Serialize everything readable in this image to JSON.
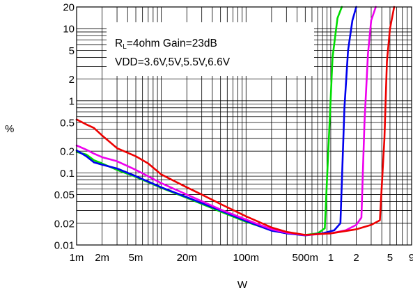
{
  "chart_data": {
    "type": "line",
    "xscale": "log",
    "yscale": "log",
    "xlim": [
      0.001,
      9
    ],
    "ylim": [
      0.01,
      20
    ],
    "grid": true,
    "xlabel": "W",
    "ylabel": "%",
    "xticks": [
      {
        "value": 0.001,
        "label": "1m"
      },
      {
        "value": 0.002,
        "label": "2m"
      },
      {
        "value": 0.005,
        "label": "5m"
      },
      {
        "value": 0.02,
        "label": "20m"
      },
      {
        "value": 0.1,
        "label": "100m"
      },
      {
        "value": 0.5,
        "label": "500m"
      },
      {
        "value": 1,
        "label": "1"
      },
      {
        "value": 2,
        "label": "2"
      },
      {
        "value": 5,
        "label": "5"
      },
      {
        "value": 9,
        "label": "9"
      }
    ],
    "yticks": [
      {
        "value": 0.01,
        "label": "0.01"
      },
      {
        "value": 0.02,
        "label": "0.02"
      },
      {
        "value": 0.05,
        "label": "0.05"
      },
      {
        "value": 0.1,
        "label": "0.1"
      },
      {
        "value": 0.2,
        "label": "0.2"
      },
      {
        "value": 0.5,
        "label": "0.5"
      },
      {
        "value": 1,
        "label": "1"
      },
      {
        "value": 2,
        "label": "2"
      },
      {
        "value": 5,
        "label": "5"
      },
      {
        "value": 10,
        "label": "10"
      },
      {
        "value": 20,
        "label": "20"
      }
    ],
    "annotation": {
      "line1_prefix": "R",
      "line1_sub": "L",
      "line1_rest": "=4ohm Gain=23dB",
      "line2": "VDD=3.6V,5V,5.5V,6.6V"
    },
    "series": [
      {
        "color": "#00dd00",
        "points": [
          [
            0.001,
            0.195
          ],
          [
            0.0013,
            0.18
          ],
          [
            0.0016,
            0.15
          ],
          [
            0.002,
            0.135
          ],
          [
            0.003,
            0.11
          ],
          [
            0.005,
            0.088
          ],
          [
            0.01,
            0.062
          ],
          [
            0.02,
            0.045
          ],
          [
            0.05,
            0.029
          ],
          [
            0.1,
            0.021
          ],
          [
            0.2,
            0.016
          ],
          [
            0.3,
            0.0145
          ],
          [
            0.5,
            0.0138
          ],
          [
            0.7,
            0.0145
          ],
          [
            0.85,
            0.017
          ],
          [
            0.95,
            0.3
          ],
          [
            1.05,
            4.0
          ],
          [
            1.2,
            14
          ],
          [
            1.35,
            20
          ]
        ]
      },
      {
        "color": "#0000ee",
        "points": [
          [
            0.001,
            0.205
          ],
          [
            0.0013,
            0.17
          ],
          [
            0.0016,
            0.14
          ],
          [
            0.002,
            0.13
          ],
          [
            0.003,
            0.115
          ],
          [
            0.005,
            0.09
          ],
          [
            0.01,
            0.063
          ],
          [
            0.02,
            0.046
          ],
          [
            0.05,
            0.03
          ],
          [
            0.1,
            0.0215
          ],
          [
            0.2,
            0.0158
          ],
          [
            0.3,
            0.0145
          ],
          [
            0.5,
            0.0136
          ],
          [
            0.8,
            0.0145
          ],
          [
            1.1,
            0.016
          ],
          [
            1.3,
            0.02
          ],
          [
            1.45,
            0.8
          ],
          [
            1.6,
            5.0
          ],
          [
            1.8,
            13
          ],
          [
            2.0,
            20
          ]
        ]
      },
      {
        "color": "#ee00ee",
        "points": [
          [
            0.001,
            0.24
          ],
          [
            0.0013,
            0.21
          ],
          [
            0.0016,
            0.185
          ],
          [
            0.002,
            0.165
          ],
          [
            0.003,
            0.145
          ],
          [
            0.005,
            0.11
          ],
          [
            0.01,
            0.072
          ],
          [
            0.02,
            0.05
          ],
          [
            0.05,
            0.031
          ],
          [
            0.1,
            0.0225
          ],
          [
            0.2,
            0.0165
          ],
          [
            0.3,
            0.0148
          ],
          [
            0.5,
            0.0137
          ],
          [
            1.0,
            0.0145
          ],
          [
            1.5,
            0.016
          ],
          [
            2.0,
            0.019
          ],
          [
            2.3,
            0.024
          ],
          [
            2.5,
            0.5
          ],
          [
            2.75,
            4.5
          ],
          [
            3.0,
            13
          ],
          [
            3.4,
            20
          ]
        ]
      },
      {
        "color": "#ee0000",
        "points": [
          [
            0.001,
            0.55
          ],
          [
            0.0013,
            0.47
          ],
          [
            0.0016,
            0.42
          ],
          [
            0.002,
            0.33
          ],
          [
            0.003,
            0.22
          ],
          [
            0.005,
            0.17
          ],
          [
            0.007,
            0.135
          ],
          [
            0.01,
            0.095
          ],
          [
            0.02,
            0.063
          ],
          [
            0.03,
            0.05
          ],
          [
            0.05,
            0.037
          ],
          [
            0.1,
            0.025
          ],
          [
            0.2,
            0.0175
          ],
          [
            0.3,
            0.0152
          ],
          [
            0.5,
            0.0138
          ],
          [
            1.0,
            0.0145
          ],
          [
            2.0,
            0.0165
          ],
          [
            3.0,
            0.019
          ],
          [
            3.8,
            0.022
          ],
          [
            4.3,
            0.3
          ],
          [
            4.6,
            3.5
          ],
          [
            5.0,
            10
          ],
          [
            5.6,
            20
          ]
        ]
      }
    ]
  }
}
